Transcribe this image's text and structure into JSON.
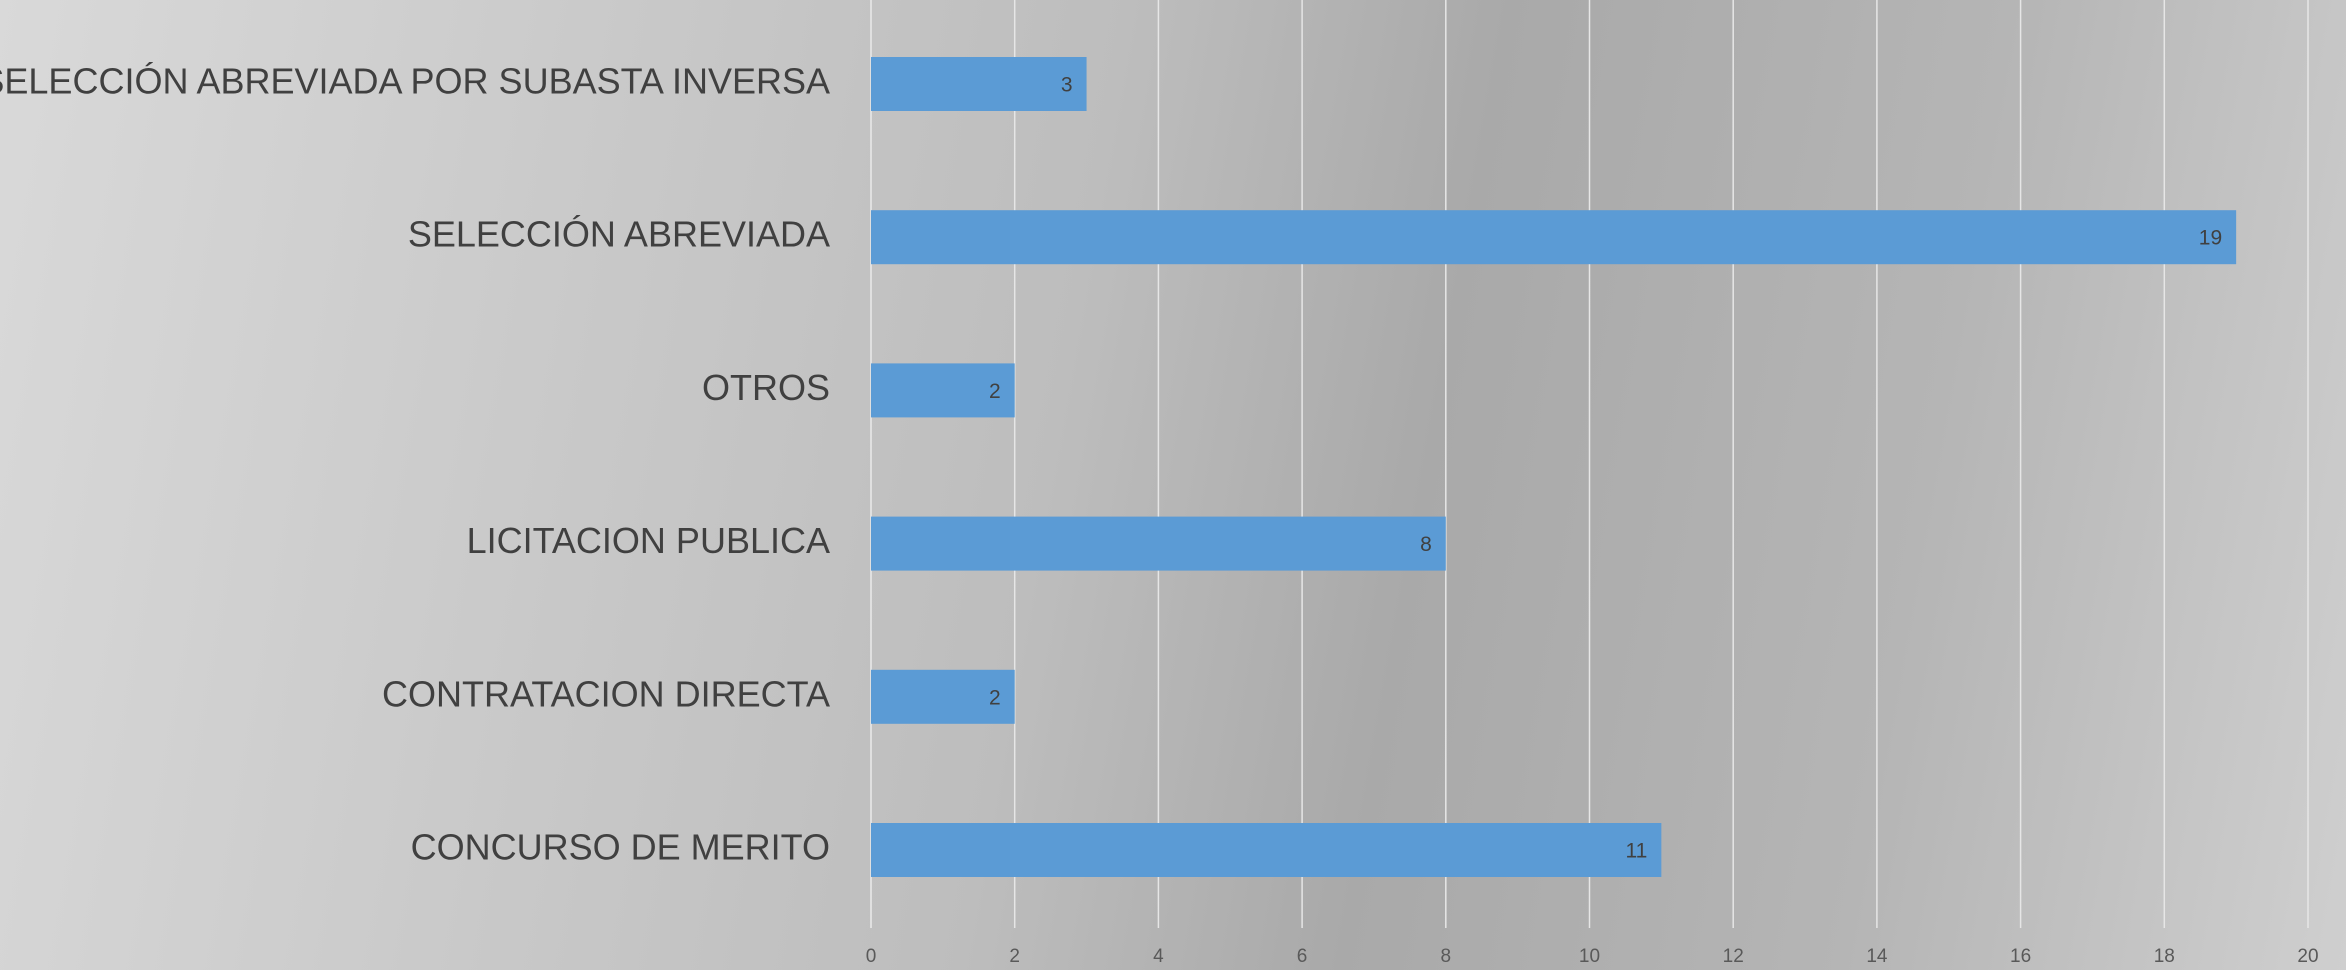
{
  "chart_data": {
    "type": "bar",
    "orientation": "horizontal",
    "categories": [
      "SELECCIÓN ABREVIADA POR SUBASTA INVERSA",
      "SELECCIÓN ABREVIADA",
      "OTROS",
      "LICITACION PUBLICA",
      "CONTRATACION DIRECTA",
      "CONCURSO DE MERITO"
    ],
    "values": [
      3,
      19,
      2,
      8,
      2,
      11
    ],
    "color": "#5b9bd5",
    "xlim": [
      0,
      20
    ],
    "xticks": [
      0,
      2,
      4,
      6,
      8,
      10,
      12,
      14,
      16,
      18,
      20
    ],
    "grid": true
  }
}
